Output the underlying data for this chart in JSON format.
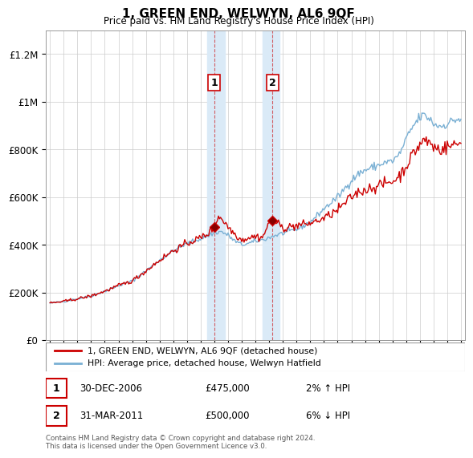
{
  "title": "1, GREEN END, WELWYN, AL6 9QF",
  "subtitle": "Price paid vs. HM Land Registry's House Price Index (HPI)",
  "legend_line1": "1, GREEN END, WELWYN, AL6 9QF (detached house)",
  "legend_line2": "HPI: Average price, detached house, Welwyn Hatfield",
  "sale1_date": "30-DEC-2006",
  "sale1_price": "£475,000",
  "sale1_hpi": "2% ↑ HPI",
  "sale2_date": "31-MAR-2011",
  "sale2_price": "£500,000",
  "sale2_hpi": "6% ↓ HPI",
  "footer": "Contains HM Land Registry data © Crown copyright and database right 2024.\nThis data is licensed under the Open Government Licence v3.0.",
  "red_color": "#cc0000",
  "blue_color": "#7ab0d4",
  "shade_color": "#daeaf7",
  "background_color": "#ffffff",
  "grid_color": "#cccccc",
  "ylim": [
    0,
    1300000
  ],
  "xlim_start": 1994.7,
  "xlim_end": 2025.3,
  "sale1_year": 2006.99,
  "sale2_year": 2011.25,
  "shade1_start": 2006.5,
  "shade1_end": 2007.75,
  "shade2_start": 2010.5,
  "shade2_end": 2011.75
}
